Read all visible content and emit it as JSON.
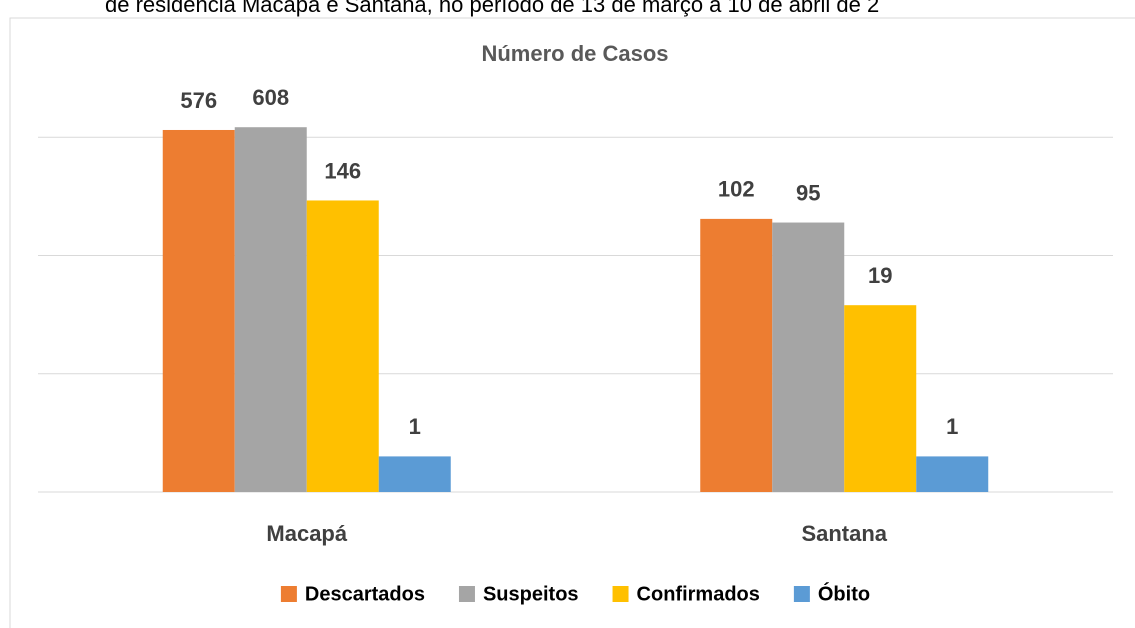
{
  "caption": "de residência Macapá e Santana, no período de 13 de março a 10 de abril de 2",
  "chart_data": {
    "type": "bar",
    "title": "Número de Casos",
    "categories": [
      "Macapá",
      "Santana"
    ],
    "series": [
      {
        "name": "Descartados",
        "color": "#ED7D31",
        "values": [
          576,
          102
        ]
      },
      {
        "name": "Suspeitos",
        "color": "#A5A5A5",
        "values": [
          608,
          95
        ]
      },
      {
        "name": "Confirmados",
        "color": "#FFC000",
        "values": [
          146,
          19
        ]
      },
      {
        "name": "Óbito",
        "color": "#5B9BD5",
        "values": [
          1,
          1
        ]
      }
    ],
    "log_scale": true,
    "ylim": [
      0.5,
      5000
    ],
    "yticks": [
      0.5,
      5,
      50,
      500
    ],
    "grid": true,
    "y_axis_visible": false,
    "legend": "bottom",
    "data_labels": true
  }
}
